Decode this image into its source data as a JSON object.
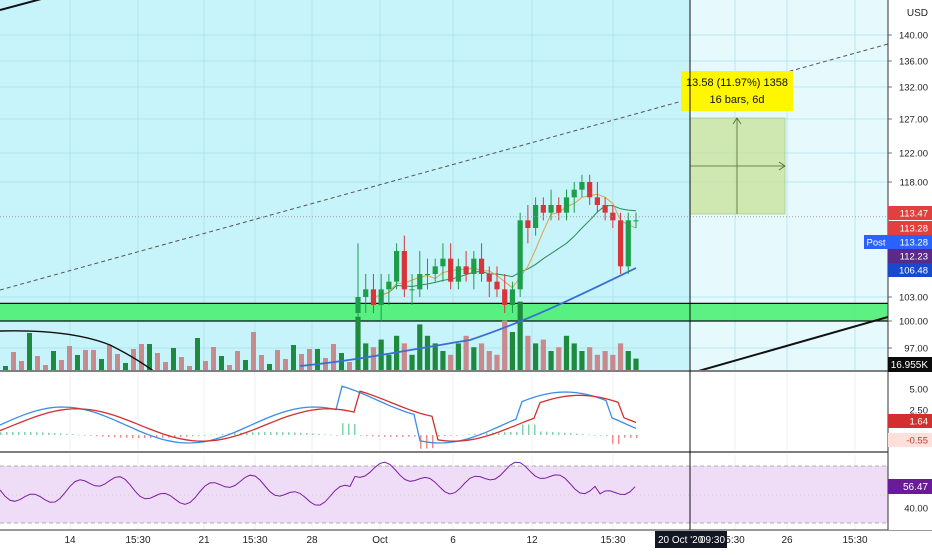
{
  "currency": "USD",
  "chart_data": {
    "type": "candlestick",
    "x_labels": [
      "14",
      "15:30",
      "21",
      "15:30",
      "28",
      "Oct",
      "6",
      "12",
      "15:30",
      "5:30",
      "26",
      "15:30"
    ],
    "crosshair_date_label": "20 Oct '20",
    "crosshair_time_label": "09:30",
    "price_axis_ticks": [
      "140.00",
      "136.00",
      "132.00",
      "127.00",
      "122.00",
      "118.00",
      "103.00",
      "100.00",
      "97.00"
    ],
    "price_tags": [
      {
        "value": "113.47",
        "color": "#e0413e"
      },
      {
        "value": "113.28",
        "color": "#e0413e"
      },
      {
        "value": "113.28",
        "label": "Post",
        "color": "#2962ff"
      },
      {
        "value": "112.23",
        "color": "#5b2a86"
      },
      {
        "value": "106.48",
        "color": "#1848cc"
      }
    ],
    "volume_tag": "16.955K",
    "measure_tool": {
      "line1": "13.58 (11.97%) 1358",
      "line2": "16 bars, 6d"
    },
    "support_zone": [
      100.0,
      102.2
    ],
    "price_ohlc": [
      [
        101,
        110,
        100,
        103
      ],
      [
        103,
        106,
        101,
        104
      ],
      [
        104,
        106,
        101,
        102
      ],
      [
        102,
        106,
        100,
        104
      ],
      [
        104,
        106,
        102,
        105
      ],
      [
        105,
        110,
        104,
        109
      ],
      [
        109,
        111,
        103,
        104
      ],
      [
        104,
        106,
        102,
        104
      ],
      [
        104,
        109,
        103,
        106
      ],
      [
        106,
        108,
        104,
        106
      ],
      [
        106,
        108,
        105,
        107
      ],
      [
        107,
        110,
        105,
        108
      ],
      [
        108,
        110,
        104,
        105
      ],
      [
        105,
        108,
        104,
        107
      ],
      [
        107,
        109,
        105,
        106
      ],
      [
        106,
        109,
        104,
        108
      ],
      [
        108,
        110,
        105,
        106
      ],
      [
        106,
        107,
        103,
        105
      ],
      [
        105,
        107,
        103,
        104
      ],
      [
        104,
        106,
        101,
        102
      ],
      [
        102,
        105,
        101,
        104
      ],
      [
        104,
        114,
        103,
        113
      ],
      [
        113,
        115,
        110,
        112
      ],
      [
        112,
        116,
        111,
        115
      ],
      [
        115,
        116,
        113,
        114
      ],
      [
        114,
        117,
        113,
        115
      ],
      [
        115,
        116,
        113,
        114
      ],
      [
        114,
        117,
        113,
        116
      ],
      [
        116,
        118,
        114,
        117
      ],
      [
        117,
        119,
        116,
        118
      ],
      [
        118,
        119,
        115,
        116
      ],
      [
        116,
        118,
        114,
        115
      ],
      [
        115,
        116,
        113,
        114
      ],
      [
        114,
        115,
        112,
        113
      ],
      [
        113,
        114,
        106,
        107
      ],
      [
        107,
        114,
        106,
        113
      ],
      [
        113,
        114,
        112,
        113
      ]
    ],
    "volume": [
      1.4,
      0.7,
      0.6,
      0.8,
      0.4,
      0.9,
      0.7,
      0.4,
      1.2,
      0.9,
      0.7,
      0.5,
      0.4,
      0.7,
      0.9,
      0.6,
      0.7,
      0.5,
      0.4,
      1.3,
      1.0,
      1.8,
      0.9,
      0.7,
      0.8,
      0.5,
      0.6,
      0.9,
      0.7,
      0.5,
      0.6,
      0.4,
      0.5,
      0.4,
      0.7,
      0.5,
      0.3
    ],
    "macd_ticks": [
      "5.00",
      "2.50"
    ],
    "macd_tags": [
      {
        "value": "1.64",
        "color": "#d32f2f"
      },
      {
        "value": "-0.55",
        "color": "#fde0dc"
      }
    ],
    "rsi_ticks": [
      "40.00"
    ],
    "rsi_tag": "56.47"
  }
}
